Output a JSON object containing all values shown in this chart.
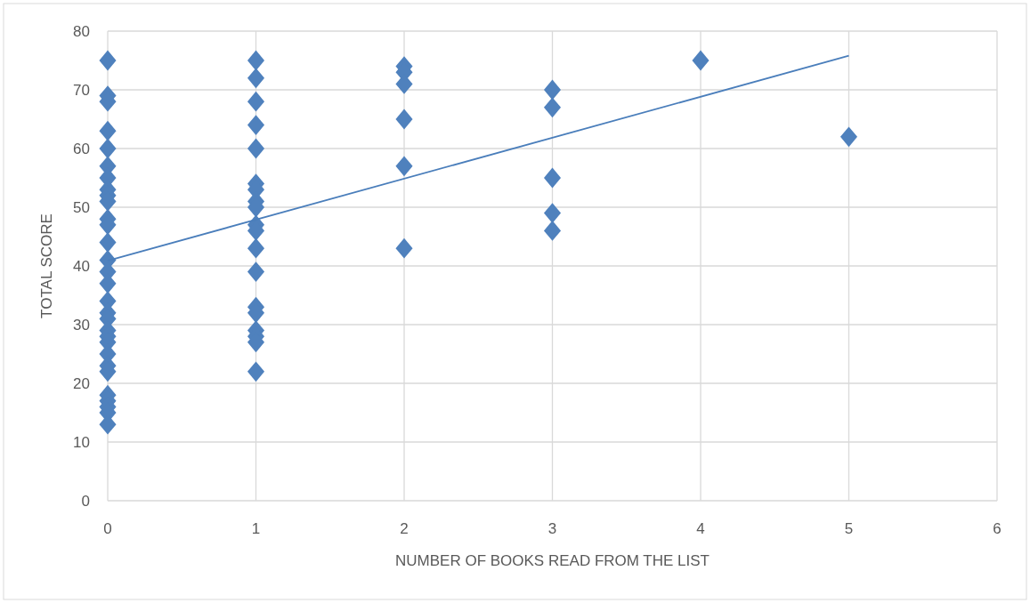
{
  "chart_data": {
    "type": "scatter",
    "xlabel": "NUMBER OF BOOKS READ FROM THE LIST",
    "ylabel": "TOTAL SCORE",
    "xlim": [
      0,
      6
    ],
    "xticks": [
      0,
      1,
      2,
      3,
      4,
      5,
      6
    ],
    "ylim": [
      0,
      80
    ],
    "yticks": [
      0,
      10,
      20,
      30,
      40,
      50,
      60,
      70,
      80
    ],
    "grid": true,
    "marker": "diamond",
    "series": [
      {
        "color": "#4f81bd",
        "x": [
          0,
          0,
          0,
          0,
          0,
          0,
          0,
          0,
          0,
          0,
          0,
          0,
          0,
          0,
          0,
          0,
          0,
          0,
          0,
          0,
          0,
          0,
          0,
          0,
          0,
          0,
          0,
          0,
          0,
          0,
          1,
          1,
          1,
          1,
          1,
          1,
          1,
          1,
          1,
          1,
          1,
          1,
          1,
          1,
          1,
          1,
          1,
          1,
          1,
          2,
          2,
          2,
          2,
          2,
          2,
          3,
          3,
          3,
          3,
          3,
          4,
          5
        ],
        "values": [
          75,
          69,
          68,
          63,
          60,
          57,
          55,
          53,
          52,
          51,
          48,
          47,
          44,
          41,
          39,
          37,
          34,
          32,
          31,
          29,
          28,
          27,
          25,
          23,
          22,
          18,
          17,
          16,
          15,
          13,
          75,
          72,
          68,
          64,
          60,
          54,
          53,
          51,
          50,
          47,
          46,
          43,
          39,
          33,
          32,
          29,
          28,
          27,
          22,
          74,
          73,
          71,
          65,
          57,
          43,
          70,
          67,
          55,
          49,
          46,
          75,
          62
        ]
      },
      {
        "type": "line",
        "color": "#4a7ebb",
        "marker": "none",
        "line_style": "solid",
        "x": [
          0,
          5
        ],
        "values": [
          40.9,
          75.8
        ]
      }
    ]
  }
}
